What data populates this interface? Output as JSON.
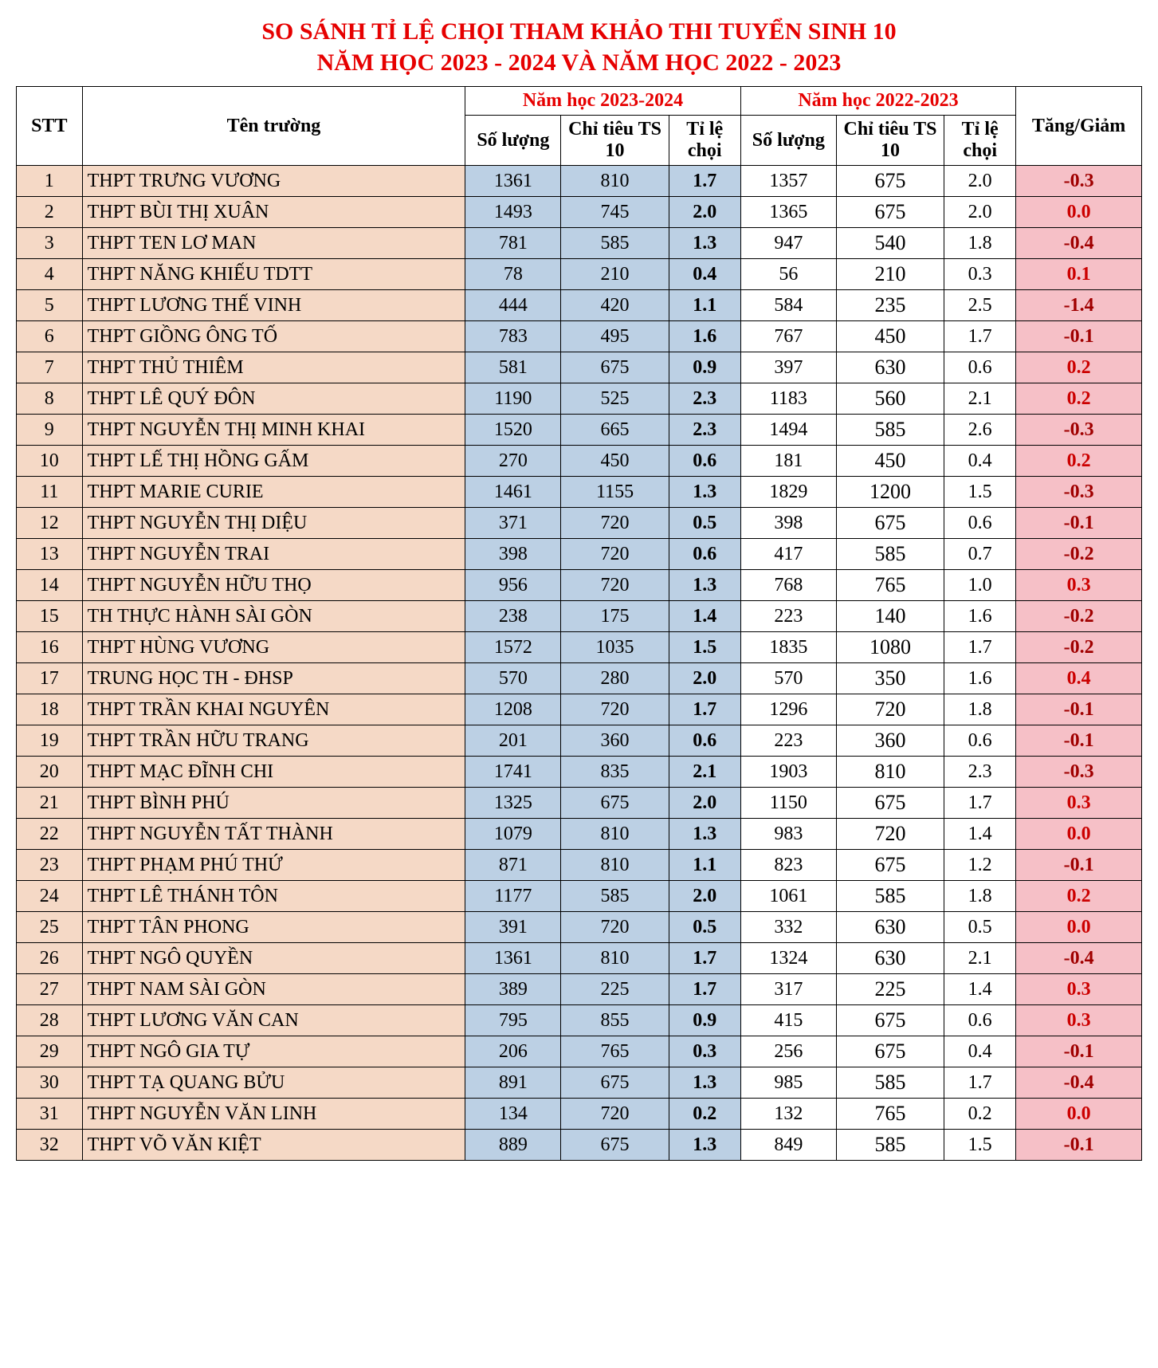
{
  "title_line1": "SO SÁNH TỈ LỆ CHỌI THAM KHẢO THI TUYỂN SINH 10",
  "title_line2": "NĂM HỌC 2023 - 2024 VÀ NĂM HỌC 2022 - 2023",
  "headers": {
    "stt": "STT",
    "name": "Tên trường",
    "year2023": "Năm học 2023-2024",
    "year2022": "Năm học 2022-2023",
    "diff": "Tăng/Giảm",
    "so_luong": "Số lượng",
    "chi_tieu": "Chỉ tiêu TS 10",
    "ti_le": "Tỉ lệ chọi"
  },
  "colors": {
    "title": "#e60000",
    "header_year": "#e60000",
    "stt_bg": "#f5d9c6",
    "name_bg": "#f5d9c6",
    "y2023_bg": "#bcd0e4",
    "y2022_bg": "#ffffff",
    "diff_bg": "#f6c0c7",
    "diff_neg": "#cc0000",
    "diff_dark": "#a00000",
    "border": "#000000"
  },
  "rows": [
    {
      "stt": "1",
      "name": "THPT TRƯNG VƯƠNG",
      "sl2023": "1361",
      "ct2023": "810",
      "tl2023": "1.7",
      "sl2022": "1357",
      "ct2022": "675",
      "tl2022": "2.0",
      "diff": "-0.3"
    },
    {
      "stt": "2",
      "name": "THPT BÙI THỊ XUÂN",
      "sl2023": "1493",
      "ct2023": "745",
      "tl2023": "2.0",
      "sl2022": "1365",
      "ct2022": "675",
      "tl2022": "2.0",
      "diff": "0.0"
    },
    {
      "stt": "3",
      "name": "THPT TEN LƠ MAN",
      "sl2023": "781",
      "ct2023": "585",
      "tl2023": "1.3",
      "sl2022": "947",
      "ct2022": "540",
      "tl2022": "1.8",
      "diff": "-0.4"
    },
    {
      "stt": "4",
      "name": "THPT NĂNG KHIẾU TDTT",
      "sl2023": "78",
      "ct2023": "210",
      "tl2023": "0.4",
      "sl2022": "56",
      "ct2022": "210",
      "tl2022": "0.3",
      "diff": "0.1"
    },
    {
      "stt": "5",
      "name": "THPT LƯƠNG THẾ VINH",
      "sl2023": "444",
      "ct2023": "420",
      "tl2023": "1.1",
      "sl2022": "584",
      "ct2022": "235",
      "tl2022": "2.5",
      "diff": "-1.4"
    },
    {
      "stt": "6",
      "name": "THPT GIỒNG ÔNG TỐ",
      "sl2023": "783",
      "ct2023": "495",
      "tl2023": "1.6",
      "sl2022": "767",
      "ct2022": "450",
      "tl2022": "1.7",
      "diff": "-0.1"
    },
    {
      "stt": "7",
      "name": "THPT THỦ THIÊM",
      "sl2023": "581",
      "ct2023": "675",
      "tl2023": "0.9",
      "sl2022": "397",
      "ct2022": "630",
      "tl2022": "0.6",
      "diff": "0.2"
    },
    {
      "stt": "8",
      "name": "THPT LÊ QUÝ ĐÔN",
      "sl2023": "1190",
      "ct2023": "525",
      "tl2023": "2.3",
      "sl2022": "1183",
      "ct2022": "560",
      "tl2022": "2.1",
      "diff": "0.2"
    },
    {
      "stt": "9",
      "name": "THPT NGUYỄN THỊ MINH KHAI",
      "sl2023": "1520",
      "ct2023": "665",
      "tl2023": "2.3",
      "sl2022": "1494",
      "ct2022": "585",
      "tl2022": "2.6",
      "diff": "-0.3"
    },
    {
      "stt": "10",
      "name": "THPT LẾ THỊ HỒNG GẤM",
      "sl2023": "270",
      "ct2023": "450",
      "tl2023": "0.6",
      "sl2022": "181",
      "ct2022": "450",
      "tl2022": "0.4",
      "diff": "0.2"
    },
    {
      "stt": "11",
      "name": "THPT MARIE CURIE",
      "sl2023": "1461",
      "ct2023": "1155",
      "tl2023": "1.3",
      "sl2022": "1829",
      "ct2022": "1200",
      "tl2022": "1.5",
      "diff": "-0.3"
    },
    {
      "stt": "12",
      "name": "THPT NGUYỄN THỊ DIỆU",
      "sl2023": "371",
      "ct2023": "720",
      "tl2023": "0.5",
      "sl2022": "398",
      "ct2022": "675",
      "tl2022": "0.6",
      "diff": "-0.1"
    },
    {
      "stt": "13",
      "name": "THPT NGUYỄN TRAI",
      "sl2023": "398",
      "ct2023": "720",
      "tl2023": "0.6",
      "sl2022": "417",
      "ct2022": "585",
      "tl2022": "0.7",
      "diff": "-0.2"
    },
    {
      "stt": "14",
      "name": "THPT NGUYỄN HỮU THỌ",
      "sl2023": "956",
      "ct2023": "720",
      "tl2023": "1.3",
      "sl2022": "768",
      "ct2022": "765",
      "tl2022": "1.0",
      "diff": "0.3"
    },
    {
      "stt": "15",
      "name": "TH THỰC HÀNH SÀI GÒN",
      "sl2023": "238",
      "ct2023": "175",
      "tl2023": "1.4",
      "sl2022": "223",
      "ct2022": "140",
      "tl2022": "1.6",
      "diff": "-0.2"
    },
    {
      "stt": "16",
      "name": "THPT HÙNG VƯƠNG",
      "sl2023": "1572",
      "ct2023": "1035",
      "tl2023": "1.5",
      "sl2022": "1835",
      "ct2022": "1080",
      "tl2022": "1.7",
      "diff": "-0.2"
    },
    {
      "stt": "17",
      "name": "TRUNG HỌC TH - ĐHSP",
      "sl2023": "570",
      "ct2023": "280",
      "tl2023": "2.0",
      "sl2022": "570",
      "ct2022": "350",
      "tl2022": "1.6",
      "diff": "0.4"
    },
    {
      "stt": "18",
      "name": "THPT TRẦN KHAI NGUYÊN",
      "sl2023": "1208",
      "ct2023": "720",
      "tl2023": "1.7",
      "sl2022": "1296",
      "ct2022": "720",
      "tl2022": "1.8",
      "diff": "-0.1"
    },
    {
      "stt": "19",
      "name": "THPT TRẦN HỮU TRANG",
      "sl2023": "201",
      "ct2023": "360",
      "tl2023": "0.6",
      "sl2022": "223",
      "ct2022": "360",
      "tl2022": "0.6",
      "diff": "-0.1"
    },
    {
      "stt": "20",
      "name": "THPT MẠC ĐĨNH CHI",
      "sl2023": "1741",
      "ct2023": "835",
      "tl2023": "2.1",
      "sl2022": "1903",
      "ct2022": "810",
      "tl2022": "2.3",
      "diff": "-0.3"
    },
    {
      "stt": "21",
      "name": "THPT BÌNH PHÚ",
      "sl2023": "1325",
      "ct2023": "675",
      "tl2023": "2.0",
      "sl2022": "1150",
      "ct2022": "675",
      "tl2022": "1.7",
      "diff": "0.3"
    },
    {
      "stt": "22",
      "name": "THPT NGUYỄN TẤT THÀNH",
      "sl2023": "1079",
      "ct2023": "810",
      "tl2023": "1.3",
      "sl2022": "983",
      "ct2022": "720",
      "tl2022": "1.4",
      "diff": "0.0"
    },
    {
      "stt": "23",
      "name": "THPT PHẠM PHÚ THỨ",
      "sl2023": "871",
      "ct2023": "810",
      "tl2023": "1.1",
      "sl2022": "823",
      "ct2022": "675",
      "tl2022": "1.2",
      "diff": "-0.1"
    },
    {
      "stt": "24",
      "name": "THPT LÊ THÁNH TÔN",
      "sl2023": "1177",
      "ct2023": "585",
      "tl2023": "2.0",
      "sl2022": "1061",
      "ct2022": "585",
      "tl2022": "1.8",
      "diff": "0.2"
    },
    {
      "stt": "25",
      "name": "THPT TÂN PHONG",
      "sl2023": "391",
      "ct2023": "720",
      "tl2023": "0.5",
      "sl2022": "332",
      "ct2022": "630",
      "tl2022": "0.5",
      "diff": "0.0"
    },
    {
      "stt": "26",
      "name": "THPT NGÔ QUYỀN",
      "sl2023": "1361",
      "ct2023": "810",
      "tl2023": "1.7",
      "sl2022": "1324",
      "ct2022": "630",
      "tl2022": "2.1",
      "diff": "-0.4"
    },
    {
      "stt": "27",
      "name": "THPT NAM SÀI GÒN",
      "sl2023": "389",
      "ct2023": "225",
      "tl2023": "1.7",
      "sl2022": "317",
      "ct2022": "225",
      "tl2022": "1.4",
      "diff": "0.3"
    },
    {
      "stt": "28",
      "name": "THPT LƯƠNG VĂN CAN",
      "sl2023": "795",
      "ct2023": "855",
      "tl2023": "0.9",
      "sl2022": "415",
      "ct2022": "675",
      "tl2022": "0.6",
      "diff": "0.3"
    },
    {
      "stt": "29",
      "name": "THPT NGÔ GIA TỰ",
      "sl2023": "206",
      "ct2023": "765",
      "tl2023": "0.3",
      "sl2022": "256",
      "ct2022": "675",
      "tl2022": "0.4",
      "diff": "-0.1"
    },
    {
      "stt": "30",
      "name": "THPT TẠ QUANG BỬU",
      "sl2023": "891",
      "ct2023": "675",
      "tl2023": "1.3",
      "sl2022": "985",
      "ct2022": "585",
      "tl2022": "1.7",
      "diff": "-0.4"
    },
    {
      "stt": "31",
      "name": "THPT NGUYỄN VĂN LINH",
      "sl2023": "134",
      "ct2023": "720",
      "tl2023": "0.2",
      "sl2022": "132",
      "ct2022": "765",
      "tl2022": "0.2",
      "diff": "0.0"
    },
    {
      "stt": "32",
      "name": "THPT VÕ VĂN KIỆT",
      "sl2023": "889",
      "ct2023": "675",
      "tl2023": "1.3",
      "sl2022": "849",
      "ct2022": "585",
      "tl2022": "1.5",
      "diff": "-0.1"
    }
  ]
}
